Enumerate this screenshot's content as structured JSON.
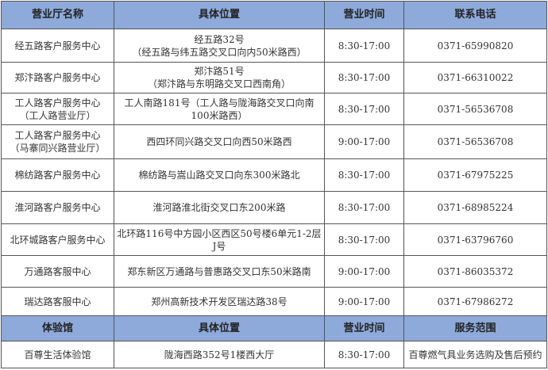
{
  "header1": [
    "营业厅名称",
    "具体位置",
    "营业时间",
    "联系电话"
  ],
  "halls": [
    {
      "name": [
        "经五路客户服务中心"
      ],
      "location": [
        "经五路32号",
        "（经五路与纬五路交叉口向内50米路西）"
      ],
      "hours": "8:30-17:00",
      "phone": "0371-65990820"
    },
    {
      "name": [
        "郑汴路客户服务中心"
      ],
      "location": [
        "郑汴路51号",
        "（郑汴路与东明路交叉口西南角）"
      ],
      "hours": "8:30-17:00",
      "phone": "0371-66310022"
    },
    {
      "name": [
        "工人路客户服务中心",
        "（工人路营业厅）"
      ],
      "location": [
        "工人南路181号（工人路与陇海路交叉口向南",
        "100米路西）"
      ],
      "hours": "8:30-17:00",
      "phone": "0371-56536708"
    },
    {
      "name": [
        "工人路客户服务中心",
        "（马寨同兴路营业厅）"
      ],
      "location": [
        "西四环同兴路交叉口向西50米路西"
      ],
      "hours": "9:00-17:00",
      "phone": "0371-56536708"
    },
    {
      "name": [
        "棉纺路客户服务中心"
      ],
      "location": [
        "棉纺路与嵩山路交叉口向东300米路北"
      ],
      "hours": "8:30-17:00",
      "phone": "0371-67975225"
    },
    {
      "name": [
        "淮河路客户服务中心"
      ],
      "location": [
        "淮河路淮北街交叉口东200米路"
      ],
      "hours": "8:30-17:00",
      "phone": "0371-68985224"
    },
    {
      "name": [
        "北环城路客户服务中心"
      ],
      "location": [
        "北环路116号中方园小区西区50号楼6单元1-2层",
        "J号"
      ],
      "hours": "8:30-17:00",
      "phone": "0371-63796760"
    },
    {
      "name": [
        "万通路客服中心"
      ],
      "location": [
        "郑东新区万通路与普惠路交叉口东50米路南"
      ],
      "hours": "9:00-17:00",
      "phone": "0371-86035372"
    },
    {
      "name": [
        "瑞达路客服中心"
      ],
      "location": [
        "郑州高新技术开发区瑞达路38号"
      ],
      "hours": "9:00-17:00",
      "phone": "0371-67986272"
    }
  ],
  "header2": [
    "体验馆",
    "具体位置",
    "营业时间",
    "服务范围"
  ],
  "experience": {
    "name": "百尊生活体验馆",
    "location": "陇海西路352号1楼西大厅",
    "hours": "8:30-17:00",
    "scope": "百尊燃气具业务选购及售后预约"
  }
}
